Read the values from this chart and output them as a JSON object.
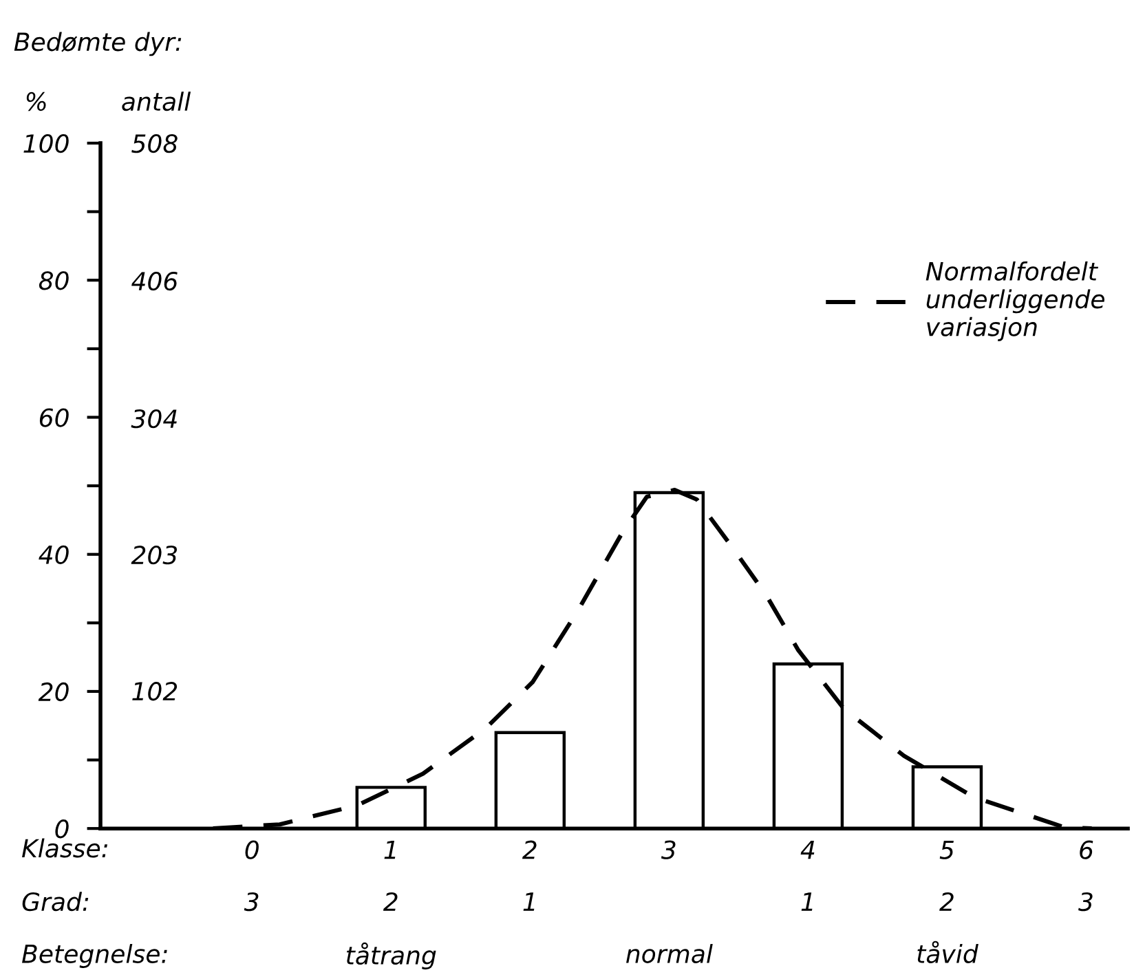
{
  "chart_data": {
    "type": "bar",
    "xlim": [
      -1.09,
      6.3
    ],
    "xticks": [
      0,
      1,
      2,
      3,
      4,
      5,
      6
    ],
    "xlabel": "Klasse:",
    "ylabel": "%",
    "y2label": "antall",
    "series": [
      {
        "color": "#ffffff",
        "x": [
          1,
          2,
          3,
          4,
          5
        ],
        "values": [
          6,
          14,
          49,
          24,
          9
        ]
      },
      {
        "type": "line",
        "name": "Normalfordelt\nunderliggende\nvariasjon",
        "color": "#000000",
        "line_style": "dashed",
        "x": [
          -0.28,
          0.2,
          0.76,
          1.23,
          1.68,
          2.02,
          2.35,
          2.67,
          2.84,
          3.04,
          3.2,
          3.47,
          3.7,
          3.93,
          4.26,
          4.69,
          5.19,
          5.84,
          6.04
        ],
        "values": [
          0,
          0.6,
          3.4,
          8,
          14.6,
          21.4,
          32,
          43.4,
          48.4,
          49.4,
          48,
          40.6,
          34,
          26,
          17.4,
          10.6,
          4.6,
          0.2,
          0
        ]
      }
    ],
    "ylim": [
      0,
      100
    ],
    "yticks": [
      0,
      {
        "value": 10,
        "label": null
      },
      20,
      {
        "value": 30,
        "label": null
      },
      40,
      {
        "value": 50,
        "label": null
      },
      60,
      {
        "value": 70,
        "label": null
      },
      80,
      {
        "value": 90,
        "label": null
      },
      100
    ],
    "y2lim": [
      0,
      508
    ],
    "y2ticks": [
      102,
      203,
      304,
      406,
      508
    ],
    "legend": "top right",
    "grid": false,
    "annotations": [
      "Bedømte dyr:",
      "Grad:",
      "Betegnelse:",
      "3",
      "2",
      "1",
      "1",
      "2",
      "3",
      "tåtrang",
      "normal",
      "tåvid"
    ]
  }
}
